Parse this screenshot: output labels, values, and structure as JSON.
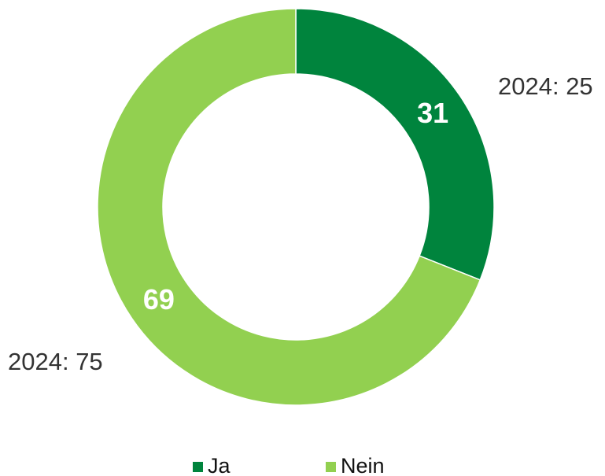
{
  "chart_data": {
    "type": "donut",
    "categories": [
      "Ja",
      "Nein"
    ],
    "values": [
      31,
      69
    ],
    "colors": [
      "#00843d",
      "#92d050"
    ],
    "annotations": [
      "2024: 25",
      "2024: 75"
    ],
    "legend": "bottom"
  }
}
